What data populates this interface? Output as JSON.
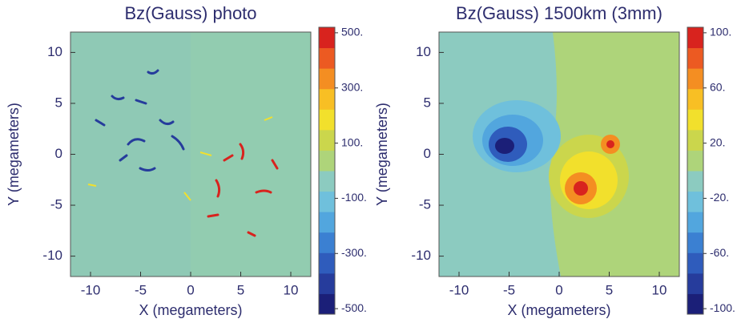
{
  "chart_data": [
    {
      "type": "heatmap",
      "title": "Bz(Gauss) photo",
      "xlabel": "X (megameters)",
      "ylabel": "Y (megameters)",
      "xlim": [
        -12,
        12
      ],
      "ylim": [
        -12,
        12
      ],
      "xticks": [
        -10,
        -5,
        0,
        5,
        10
      ],
      "yticks": [
        -10,
        -5,
        0,
        5,
        10
      ],
      "colorbar": {
        "lim": [
          -520,
          520
        ],
        "colors": [
          "#1b1f78",
          "#263c9c",
          "#2f5cbc",
          "#3b80d2",
          "#52a6de",
          "#6fc0dc",
          "#8ccbc0",
          "#aed47a",
          "#cbd64c",
          "#f2e02c",
          "#f8bf24",
          "#f48e22",
          "#ec5a22",
          "#d8231e"
        ],
        "ticks": [
          {
            "value": 500,
            "label": "500."
          },
          {
            "value": 300,
            "label": "300."
          },
          {
            "value": 100,
            "label": "100."
          },
          {
            "value": -100,
            "label": "-100."
          },
          {
            "value": -300,
            "label": "-300."
          },
          {
            "value": -500,
            "label": "-500."
          }
        ]
      }
    },
    {
      "type": "heatmap",
      "title": "Bz(Gauss) 1500km (3mm)",
      "xlabel": "X (megameters)",
      "ylabel": "Y (megameters)",
      "xlim": [
        -12,
        12
      ],
      "ylim": [
        -12,
        12
      ],
      "xticks": [
        -10,
        -5,
        0,
        5,
        10
      ],
      "yticks": [
        -10,
        -5,
        0,
        5,
        10
      ],
      "colorbar": {
        "lim": [
          -104,
          104
        ],
        "colors": [
          "#1b1f78",
          "#263c9c",
          "#2f5cbc",
          "#3b80d2",
          "#52a6de",
          "#6fc0dc",
          "#8ccbc0",
          "#aed47a",
          "#cbd64c",
          "#f2e02c",
          "#f8bf24",
          "#f48e22",
          "#ec5a22",
          "#d8231e"
        ],
        "ticks": [
          {
            "value": 100,
            "label": "100."
          },
          {
            "value": 60,
            "label": "60."
          },
          {
            "value": 20,
            "label": "20."
          },
          {
            "value": -20,
            "label": "-20."
          },
          {
            "value": -60,
            "label": "-60."
          },
          {
            "value": -100,
            "label": "-100."
          }
        ]
      }
    }
  ]
}
